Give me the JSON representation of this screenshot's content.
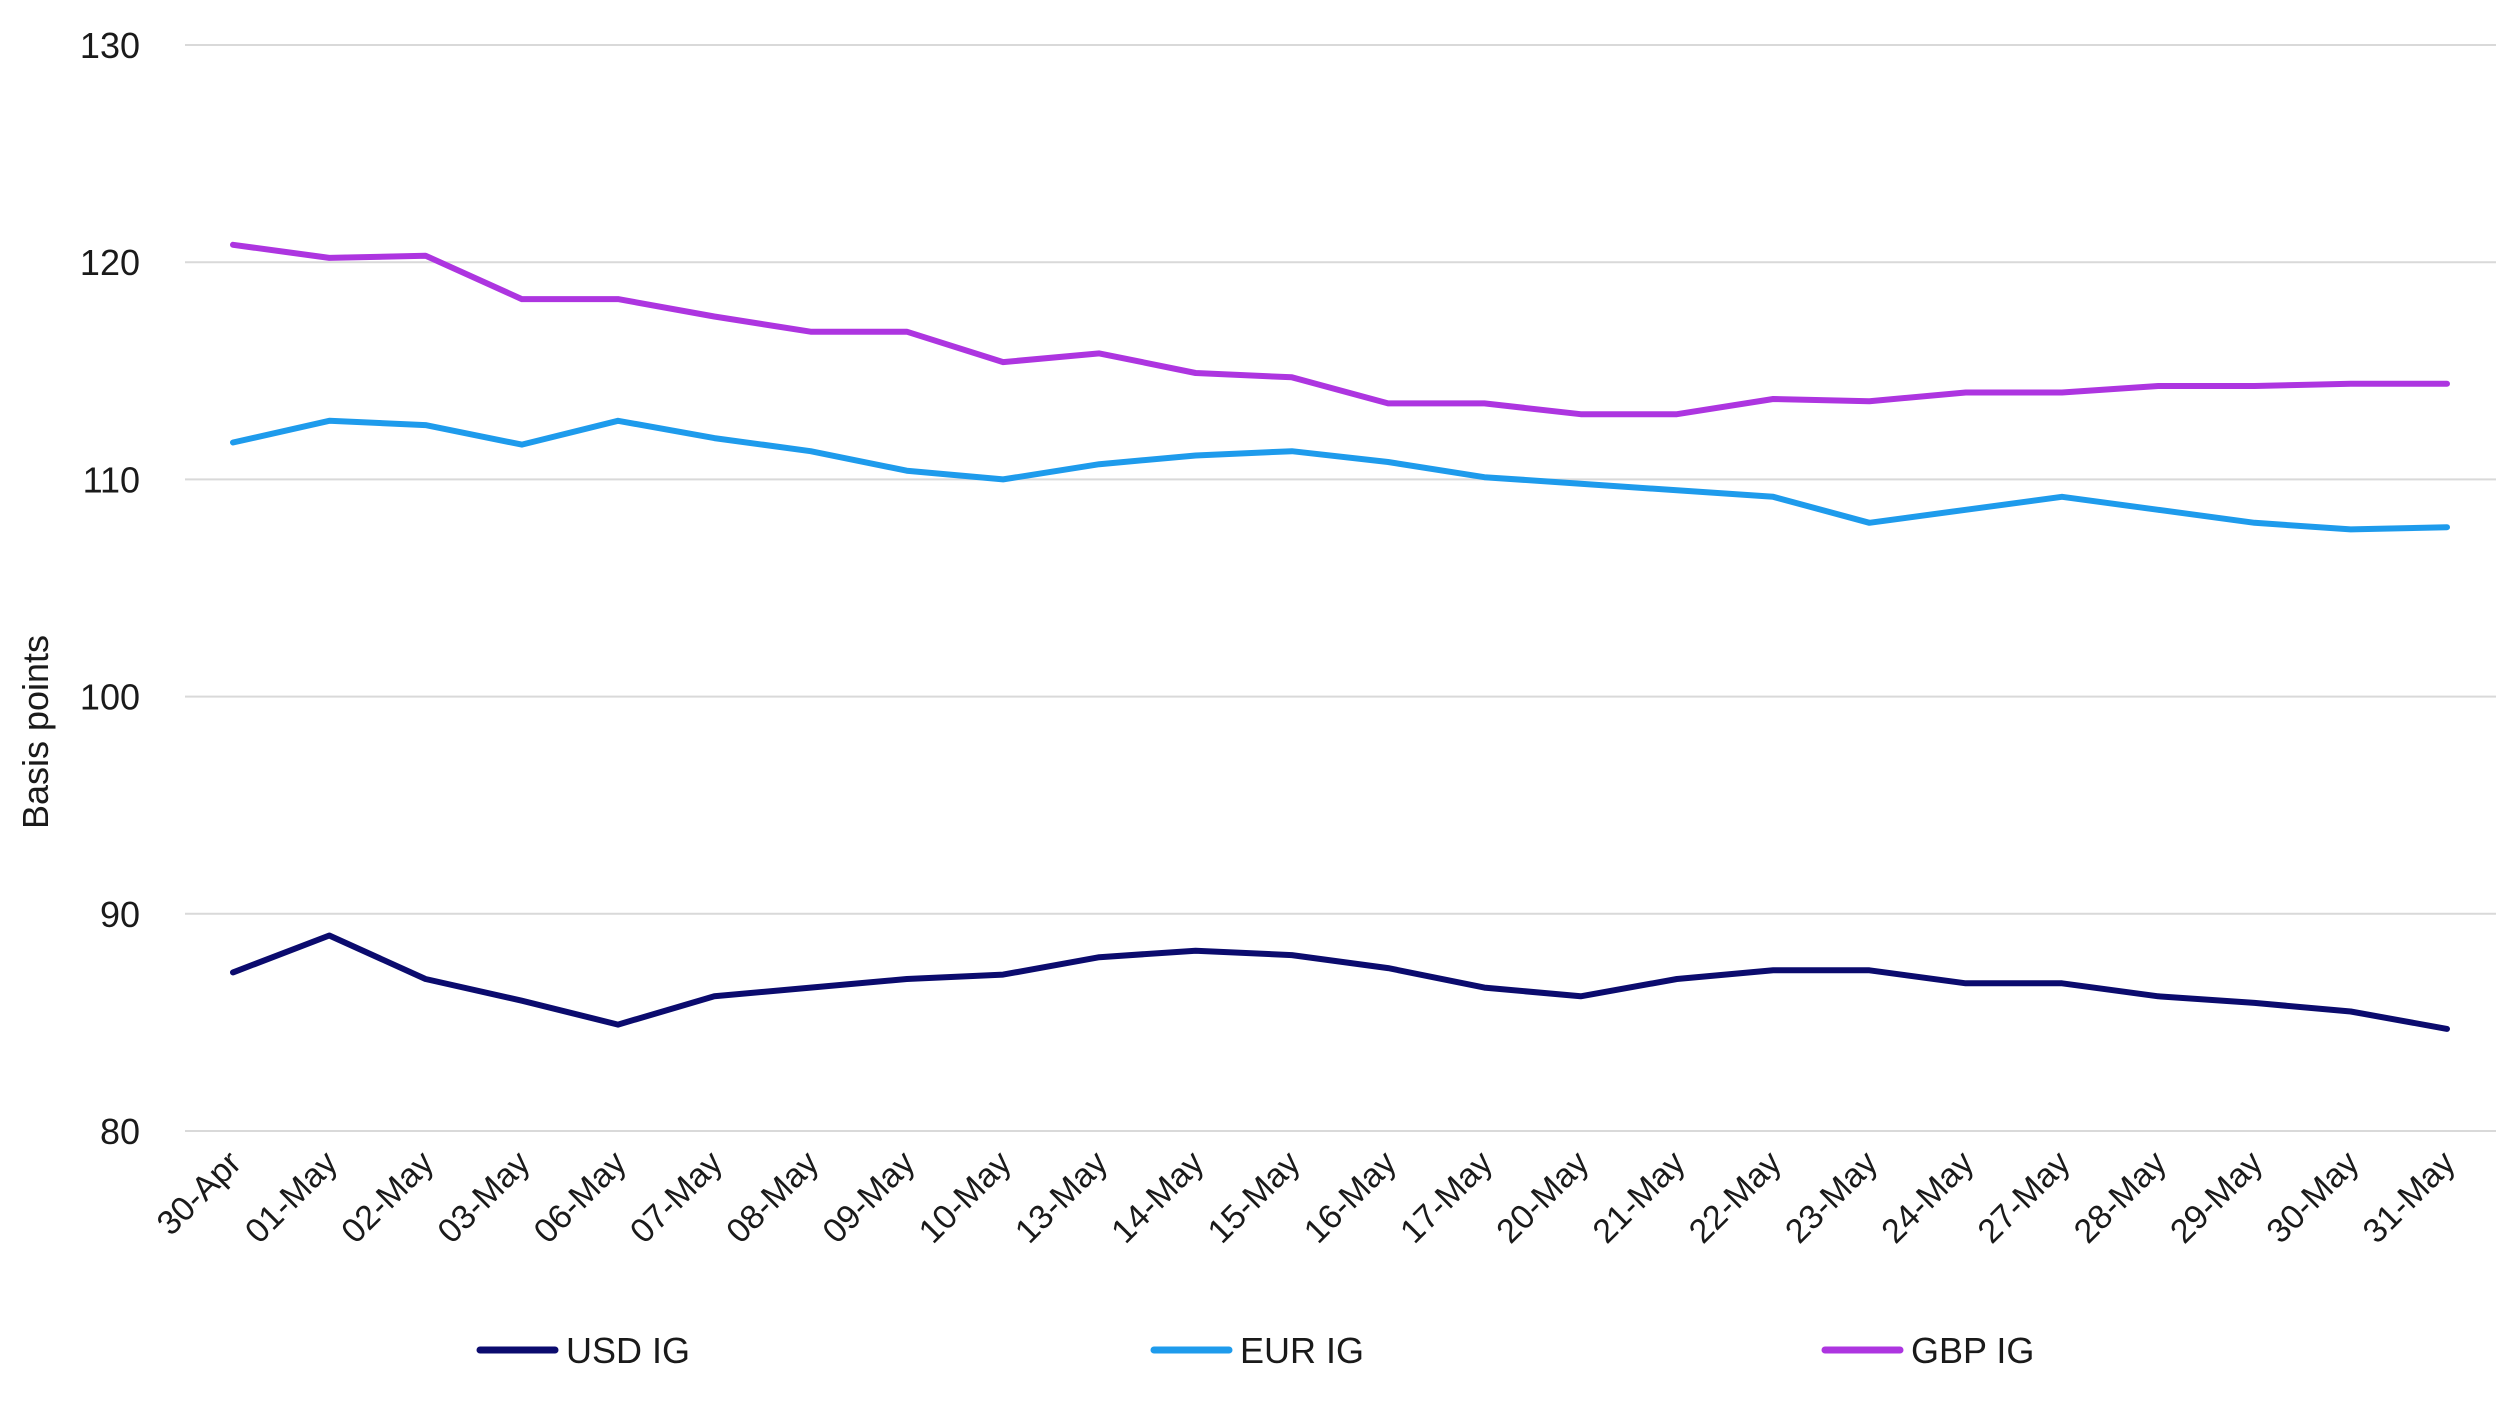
{
  "chart_data": {
    "type": "line",
    "title": "",
    "xlabel": "",
    "ylabel": "Basis points",
    "ylim": [
      80,
      130
    ],
    "yticks": [
      80,
      90,
      100,
      110,
      120,
      130
    ],
    "grid": true,
    "legend_position": "bottom",
    "categories": [
      "30-Apr",
      "01-May",
      "02-May",
      "03-May",
      "06-May",
      "07-May",
      "08-May",
      "09-May",
      "10-May",
      "13-May",
      "14-May",
      "15-May",
      "16-May",
      "17-May",
      "20-May",
      "21-May",
      "22-May",
      "23-May",
      "24-May",
      "27-May",
      "28-May",
      "29-May",
      "30-May",
      "31-May"
    ],
    "series": [
      {
        "name": "USD IG",
        "color": "#0b0b6e",
        "values": [
          87.3,
          89.0,
          87.0,
          86.0,
          84.9,
          86.2,
          86.6,
          87.0,
          87.2,
          88.0,
          88.3,
          88.1,
          87.5,
          86.6,
          86.2,
          87.0,
          87.4,
          87.4,
          86.8,
          86.8,
          86.2,
          85.9,
          85.5,
          84.7
        ]
      },
      {
        "name": "EUR IG",
        "color": "#1e9bec",
        "values": [
          111.7,
          112.7,
          112.5,
          111.6,
          112.7,
          111.9,
          111.3,
          110.4,
          110.0,
          110.7,
          111.1,
          111.3,
          110.8,
          110.1,
          109.8,
          109.5,
          109.2,
          108.0,
          108.6,
          109.2,
          108.6,
          108.0,
          107.7,
          107.8
        ]
      },
      {
        "name": "GBP IG",
        "color": "#ad35e0",
        "values": [
          120.8,
          120.2,
          120.3,
          118.3,
          118.3,
          117.5,
          116.8,
          116.8,
          115.4,
          115.8,
          114.9,
          114.7,
          113.5,
          113.5,
          113.0,
          113.0,
          113.7,
          113.6,
          114.0,
          114.0,
          114.3,
          114.3,
          114.4,
          114.4
        ]
      }
    ]
  }
}
